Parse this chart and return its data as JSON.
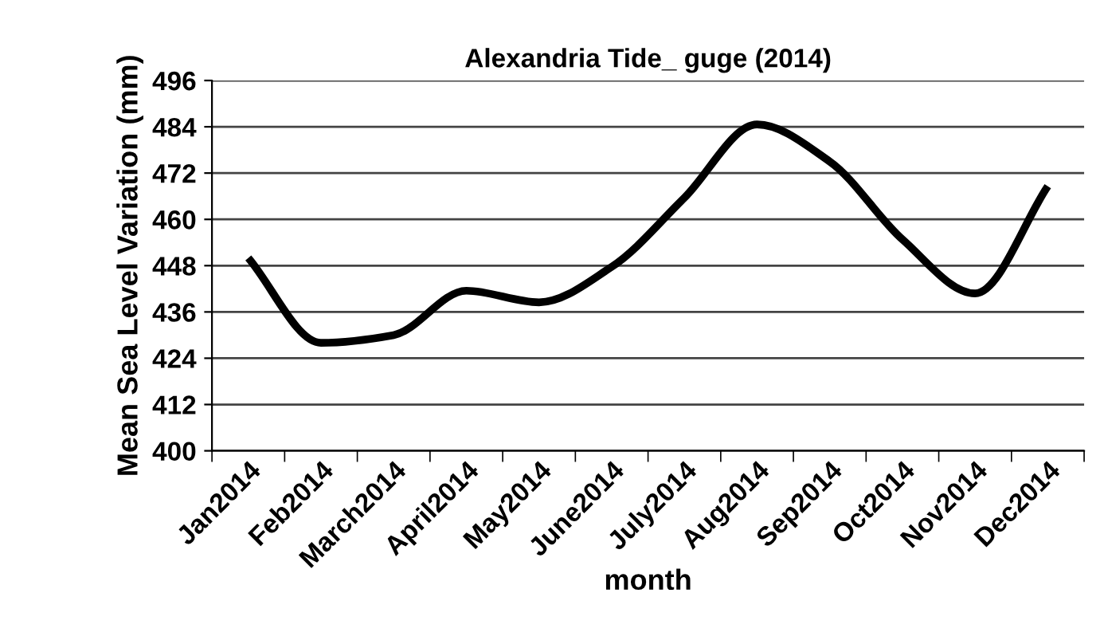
{
  "chart_data": {
    "type": "line",
    "title": "Alexandria Tide_ guge (2014)",
    "xlabel": "month",
    "ylabel": "Mean Sea Level Variation (mm)",
    "categories": [
      "Jan2014",
      "Feb2014",
      "March2014",
      "April2014",
      "May2014",
      "June2014",
      "July2014",
      "Aug2014",
      "Sep2014",
      "Oct2014",
      "Nov2014",
      "Dec2014"
    ],
    "series": [
      {
        "color": "#000000",
        "values": [
          450,
          428,
          430,
          441.5,
          438.5,
          447.7,
          465.6,
          484.6,
          475,
          454.8,
          440.8,
          468.6
        ]
      }
    ],
    "ylim": [
      400,
      496
    ],
    "yticks": [
      400,
      412,
      424,
      436,
      448,
      460,
      472,
      484,
      496
    ],
    "grid": "y",
    "legend": false,
    "marker": "none",
    "line_style": "solid"
  }
}
